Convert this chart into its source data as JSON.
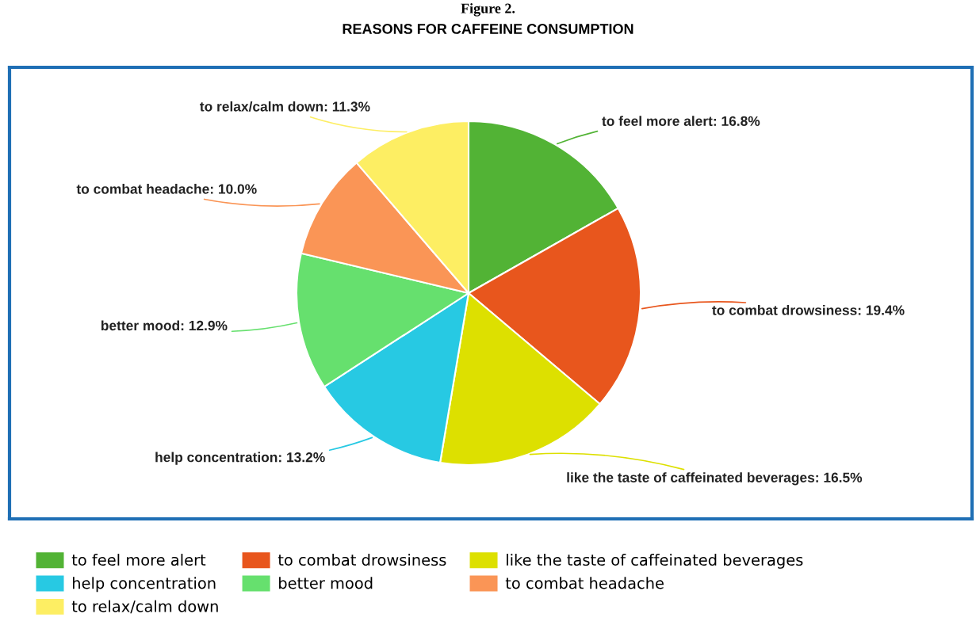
{
  "chart_data": {
    "type": "pie",
    "title": "REASONS FOR CAFFEINE CONSUMPTION",
    "annotations": [
      "Figure 2."
    ],
    "categories": [
      "to feel more alert",
      "to combat drowsiness",
      "like the taste of caffeinated beverages",
      "help concentration",
      "better mood",
      "to combat headache",
      "to relax/calm down"
    ],
    "values": [
      16.8,
      19.4,
      16.5,
      13.2,
      12.9,
      10.0,
      11.3
    ],
    "value_labels": [
      "to feel more alert: 16.8%",
      "to combat drowsiness: 19.4%",
      "like the taste of caffeinated beverages: 16.5%",
      "help concentration: 13.2%",
      "better mood: 12.9%",
      "to combat headache: 10.0%",
      "to relax/calm down: 11.3%"
    ],
    "colors": [
      "#52b335",
      "#e8561d",
      "#dde000",
      "#27c9e3",
      "#66e06e",
      "#fa9556",
      "#fdee63"
    ],
    "legend": "bottom left"
  }
}
